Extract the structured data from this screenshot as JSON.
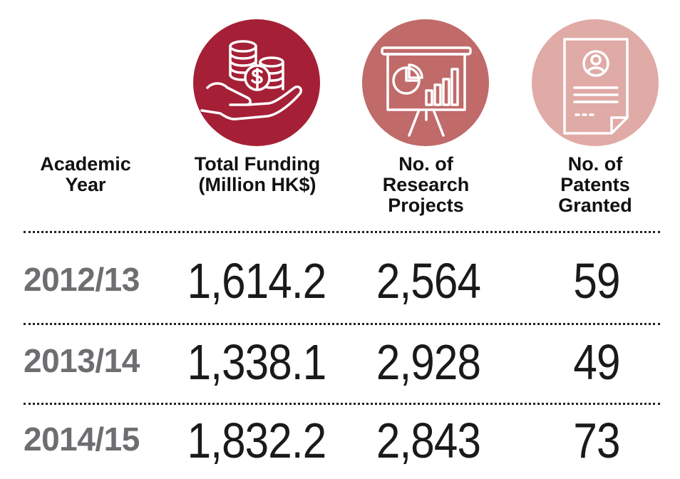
{
  "colors": {
    "funding_circle": "#a52036",
    "projects_circle": "#c06a6a",
    "patents_circle": "#e0aaa6",
    "year_text": "#6d6e71"
  },
  "icons": {
    "funding": "hand-with-coins-icon",
    "projects": "presentation-board-chart-icon",
    "patents": "patent-document-person-icon"
  },
  "headers": {
    "year": "Academic\nYear",
    "funding": "Total Funding\n(Million HK$)",
    "projects": "No. of\nResearch\nProjects",
    "patents": "No. of\nPatents\nGranted"
  },
  "chart_data": {
    "type": "table",
    "columns": [
      "Academic Year",
      "Total Funding (Million HK$)",
      "No. of Research Projects",
      "No. of Patents Granted"
    ],
    "rows": [
      {
        "year": "2012/13",
        "funding": "1,614.2",
        "projects": "2,564",
        "patents": "59"
      },
      {
        "year": "2013/14",
        "funding": "1,338.1",
        "projects": "2,928",
        "patents": "49"
      },
      {
        "year": "2014/15",
        "funding": "1,832.2",
        "projects": "2,843",
        "patents": "73"
      }
    ]
  }
}
